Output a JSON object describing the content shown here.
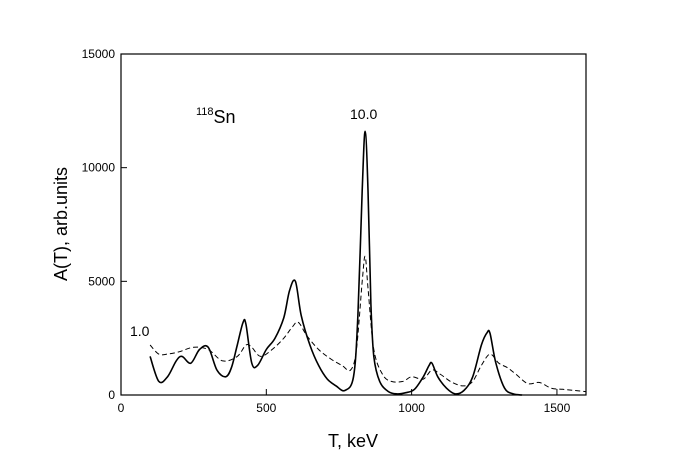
{
  "chart_data": {
    "type": "line",
    "xlabel": "T, keV",
    "ylabel": "A(T), arb.units",
    "xlim": [
      0,
      1600
    ],
    "ylim": [
      0,
      15000
    ],
    "x_ticks": [
      0,
      500,
      1000,
      1500
    ],
    "y_ticks": [
      0,
      5000,
      10000,
      15000
    ],
    "grid": false,
    "annotations": {
      "isotope_mass": "118",
      "isotope_symbol": "Sn",
      "label_left": "1.0",
      "label_peak": "10.0"
    },
    "series": [
      {
        "style": "solid",
        "color": "#000000",
        "x": [
          100,
          130,
          160,
          190,
          210,
          240,
          270,
          300,
          330,
          360,
          380,
          400,
          420,
          430,
          450,
          470,
          500,
          530,
          560,
          580,
          600,
          620,
          650,
          680,
          710,
          740,
          770,
          800,
          815,
          830,
          840,
          850,
          860,
          870,
          890,
          920,
          950,
          980,
          1010,
          1040,
          1060,
          1070,
          1090,
          1120,
          1150,
          1180,
          1210,
          1240,
          1260,
          1270,
          1290,
          1320,
          1350,
          1380
        ],
        "y": [
          1700,
          600,
          800,
          1500,
          1700,
          1400,
          2000,
          2100,
          1100,
          800,
          1200,
          2200,
          3200,
          3100,
          1400,
          1300,
          2000,
          2500,
          3400,
          4600,
          5000,
          3500,
          2200,
          1300,
          700,
          400,
          200,
          800,
          3500,
          9000,
          11600,
          9000,
          4000,
          1700,
          600,
          150,
          50,
          100,
          250,
          800,
          1300,
          1400,
          800,
          300,
          50,
          200,
          800,
          2200,
          2750,
          2700,
          1400,
          300,
          50,
          0
        ]
      },
      {
        "style": "dashed",
        "color": "#000000",
        "x": [
          100,
          130,
          160,
          200,
          250,
          300,
          350,
          400,
          430,
          450,
          480,
          520,
          560,
          590,
          610,
          640,
          680,
          720,
          760,
          790,
          810,
          830,
          840,
          850,
          870,
          900,
          930,
          970,
          1000,
          1040,
          1070,
          1100,
          1140,
          1180,
          1210,
          1240,
          1270,
          1300,
          1330,
          1360,
          1400,
          1440,
          1480,
          1520,
          1560,
          1600
        ],
        "y": [
          2200,
          1800,
          1800,
          1900,
          2100,
          2000,
          1500,
          1700,
          2200,
          2100,
          1700,
          2000,
          2500,
          3000,
          3200,
          2600,
          2000,
          1600,
          1300,
          1100,
          2000,
          5000,
          6100,
          4700,
          2000,
          900,
          600,
          600,
          800,
          700,
          1100,
          900,
          550,
          400,
          600,
          1300,
          1800,
          1400,
          1200,
          900,
          500,
          550,
          300,
          250,
          200,
          150
        ]
      }
    ]
  }
}
